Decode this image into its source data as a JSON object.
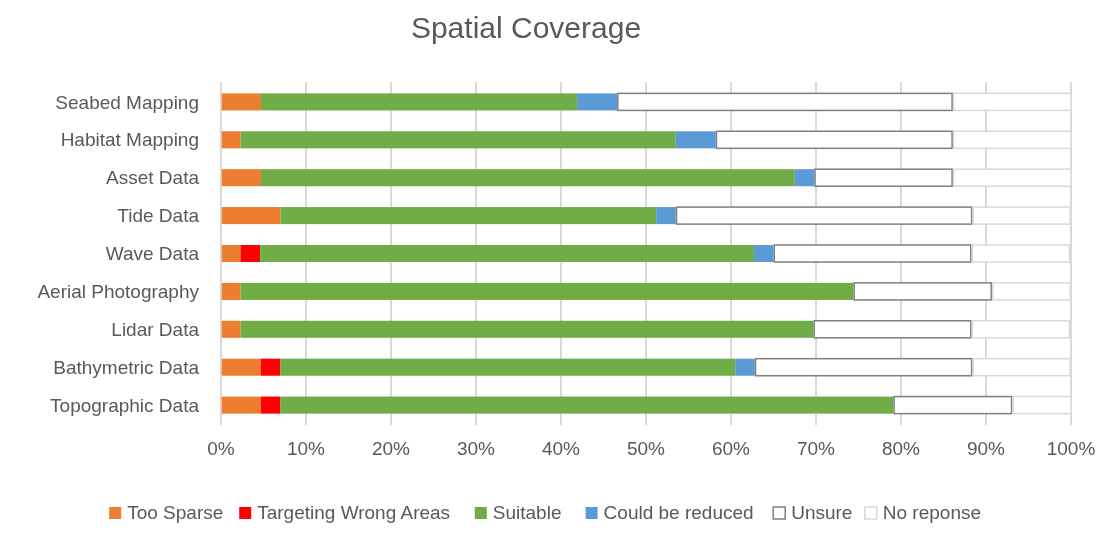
{
  "chart_data": {
    "type": "bar",
    "orientation": "horizontal",
    "stacked": true,
    "title": "Spatial Coverage",
    "categories": [
      "Seabed Mapping",
      "Habitat Mapping",
      "Asset Data",
      "Tide Data",
      "Wave Data",
      "Aerial Photography",
      "Lidar Data",
      "Bathymetric Data",
      "Topographic Data"
    ],
    "series": [
      {
        "name": "Too Sparse",
        "color": "#ed7d31",
        "values": [
          4.7,
          2.3,
          4.7,
          7.0,
          2.3,
          2.3,
          2.3,
          4.7,
          4.7
        ]
      },
      {
        "name": "Targeting Wrong Areas",
        "color": "#ff0000",
        "values": [
          0,
          0,
          0,
          0,
          2.3,
          0,
          0,
          2.3,
          2.3
        ]
      },
      {
        "name": "Suitable",
        "color": "#70ad47",
        "values": [
          37.2,
          51.2,
          62.8,
          44.2,
          58.1,
          72.1,
          67.4,
          53.5,
          72.1
        ]
      },
      {
        "name": "Could be reduced",
        "color": "#5b9bd5",
        "values": [
          4.7,
          4.7,
          2.3,
          2.3,
          2.3,
          0,
          0,
          2.3,
          0
        ]
      },
      {
        "name": "Unsure",
        "color": "#ffffff",
        "values": [
          39.5,
          27.9,
          16.3,
          34.9,
          23.3,
          16.3,
          18.6,
          25.6,
          14.0
        ]
      },
      {
        "name": "No reponse",
        "color": "#ffffff",
        "values": [
          14.0,
          14.0,
          14.0,
          11.6,
          11.6,
          9.3,
          11.6,
          11.6,
          7.0
        ]
      }
    ],
    "xlim": [
      0,
      100
    ],
    "xticks": [
      {
        "value": 0,
        "label": "0%"
      },
      {
        "value": 10,
        "label": "10%"
      },
      {
        "value": 20,
        "label": "20%"
      },
      {
        "value": 30,
        "label": "30%"
      },
      {
        "value": 40,
        "label": "40%"
      },
      {
        "value": 50,
        "label": "50%"
      },
      {
        "value": 60,
        "label": "60%"
      },
      {
        "value": 70,
        "label": "70%"
      },
      {
        "value": 80,
        "label": "80%"
      },
      {
        "value": 90,
        "label": "90%"
      },
      {
        "value": 100,
        "label": "100%"
      }
    ],
    "grid": "x",
    "legend": "bottom"
  }
}
